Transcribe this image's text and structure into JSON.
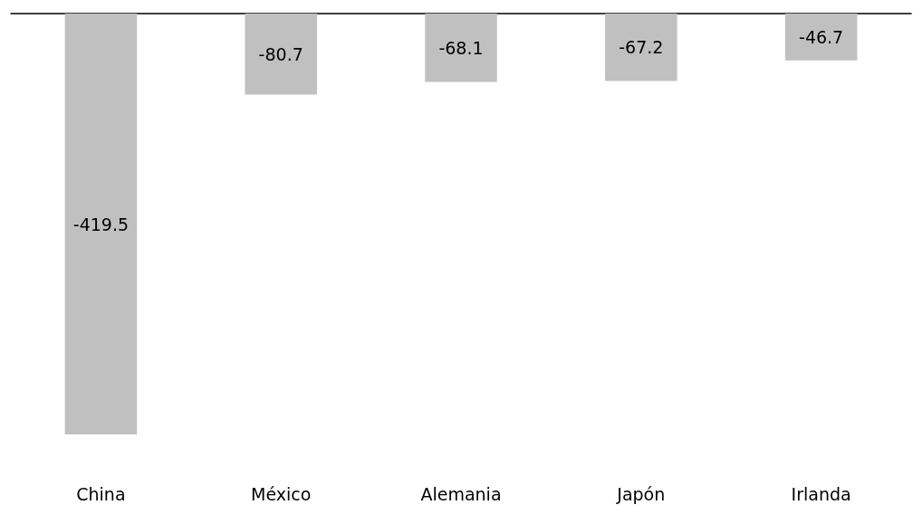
{
  "chart_data": {
    "type": "bar",
    "categories": [
      "China",
      "México",
      "Alemania",
      "Japón",
      "Irlanda"
    ],
    "values": [
      -419.5,
      -80.7,
      -68.1,
      -67.2,
      -46.7
    ],
    "color": "#c0c0c0",
    "data_labels": true
  }
}
